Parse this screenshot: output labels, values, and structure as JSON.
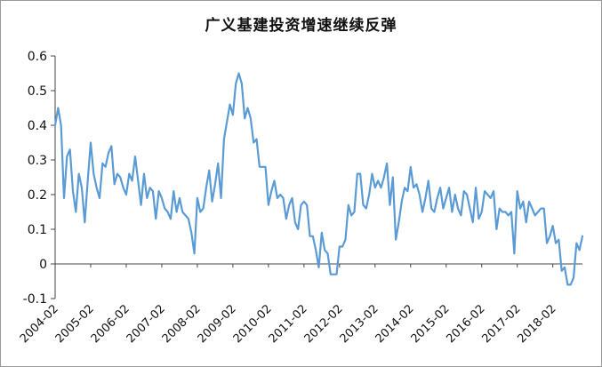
{
  "chart_data": {
    "type": "line",
    "title": "广义基建投资增速继续反弹",
    "xlabel": "",
    "ylabel": "",
    "ylim": [
      -0.1,
      0.6
    ],
    "yticks": [
      "-0.1",
      "0",
      "0.1",
      "0.2",
      "0.3",
      "0.4",
      "0.5",
      "0.6"
    ],
    "x_start": "2004-02",
    "x_tick_labels": [
      "2004-02",
      "2005-02",
      "2006-02",
      "2007-02",
      "2008-02",
      "2009-02",
      "2010-02",
      "2011-02",
      "2012-02",
      "2013-02",
      "2014-02",
      "2015-02",
      "2016-02",
      "2017-02",
      "2018-02"
    ],
    "grid": false,
    "legend": "none",
    "line_color": "#5b9bd5",
    "series": [
      {
        "values": [
          0.4,
          0.45,
          0.4,
          0.19,
          0.31,
          0.33,
          0.21,
          0.15,
          0.26,
          0.22,
          0.12,
          0.24,
          0.35,
          0.26,
          0.22,
          0.19,
          0.29,
          0.28,
          0.32,
          0.34,
          0.23,
          0.26,
          0.25,
          0.22,
          0.2,
          0.26,
          0.24,
          0.31,
          0.24,
          0.17,
          0.26,
          0.19,
          0.22,
          0.21,
          0.13,
          0.21,
          0.19,
          0.16,
          0.15,
          0.13,
          0.21,
          0.15,
          0.19,
          0.15,
          0.14,
          0.13,
          0.09,
          0.03,
          0.19,
          0.15,
          0.16,
          0.22,
          0.27,
          0.18,
          0.23,
          0.29,
          0.19,
          0.36,
          0.41,
          0.46,
          0.43,
          0.52,
          0.55,
          0.52,
          0.42,
          0.45,
          0.42,
          0.35,
          0.36,
          0.28,
          0.28,
          0.28,
          0.17,
          0.21,
          0.24,
          0.19,
          0.2,
          0.19,
          0.13,
          0.17,
          0.19,
          0.12,
          0.1,
          0.17,
          0.18,
          0.17,
          0.08,
          0.08,
          0.04,
          -0.01,
          0.09,
          0.04,
          0.03,
          -0.03,
          -0.03,
          -0.03,
          0.05,
          0.05,
          0.07,
          0.17,
          0.14,
          0.15,
          0.26,
          0.26,
          0.17,
          0.16,
          0.2,
          0.26,
          0.22,
          0.24,
          0.22,
          0.25,
          0.29,
          0.17,
          0.25,
          0.07,
          0.12,
          0.18,
          0.22,
          0.21,
          0.28,
          0.22,
          0.23,
          0.2,
          0.15,
          0.19,
          0.24,
          0.16,
          0.15,
          0.19,
          0.22,
          0.16,
          0.19,
          0.22,
          0.15,
          0.2,
          0.16,
          0.14,
          0.21,
          0.2,
          0.16,
          0.12,
          0.22,
          0.13,
          0.15,
          0.21,
          0.2,
          0.19,
          0.21,
          0.1,
          0.16,
          0.15,
          0.15,
          0.14,
          0.15,
          0.03,
          0.21,
          0.16,
          0.18,
          0.12,
          0.18,
          0.16,
          0.14,
          0.15,
          0.16,
          0.16,
          0.06,
          0.08,
          0.11,
          0.06,
          0.07,
          -0.02,
          -0.01,
          -0.06,
          -0.06,
          -0.04,
          0.06,
          0.04,
          0.08
        ]
      }
    ]
  }
}
